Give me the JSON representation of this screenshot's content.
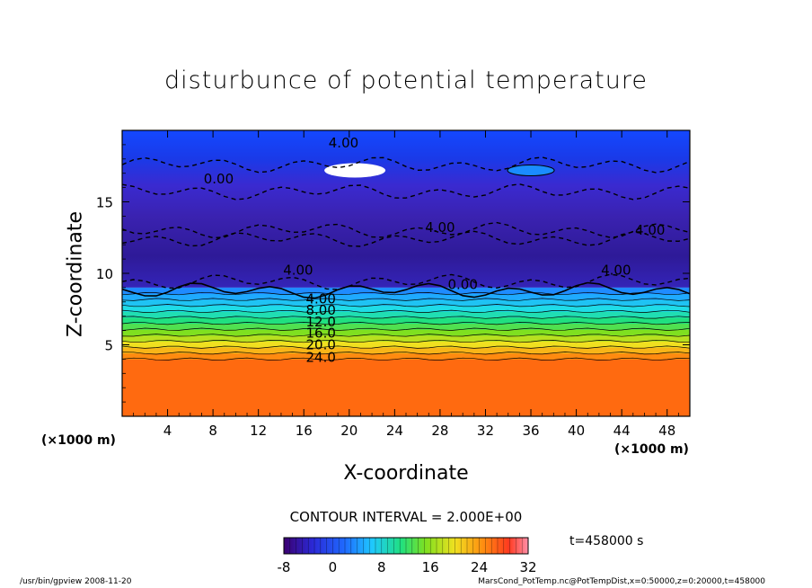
{
  "chart_data": {
    "type": "heatmap",
    "title": "disturbunce of potential temperature",
    "xlabel": "X-coordinate",
    "ylabel": "Z-coordinate",
    "x_unit_left": "(×1000 m)",
    "x_unit_right": "(×1000 m)",
    "xlim": [
      0,
      50
    ],
    "ylim": [
      0,
      20
    ],
    "xticks": [
      4,
      8,
      12,
      16,
      20,
      24,
      28,
      32,
      36,
      40,
      44,
      48
    ],
    "yticks": [
      5,
      10,
      15
    ],
    "contour_interval_label": "CONTOUR INTERVAL = 2.000E+00",
    "time_label": "t=458000 s",
    "colorbar": {
      "min": -8,
      "max": 32,
      "ticks": [
        -8,
        0,
        8,
        16,
        24,
        32
      ]
    },
    "layers": [
      {
        "z_from": 0,
        "z_to": 4,
        "value": 26
      },
      {
        "z_from": 4,
        "z_to": 9,
        "values_descending": [
          24,
          22,
          20,
          18,
          16,
          14,
          12,
          10,
          8,
          6,
          4,
          2
        ]
      },
      {
        "z_from": 9,
        "z_to": 20,
        "value_range": [
          -8,
          4
        ]
      }
    ],
    "contour_labels": [
      {
        "text": "4.00",
        "x": 19.5,
        "z": 18.8
      },
      {
        "text": "0.00",
        "x": 8.5,
        "z": 16.3
      },
      {
        "text": "4.00",
        "x": 28,
        "z": 12.9
      },
      {
        "text": "4.00",
        "x": 46.5,
        "z": 12.7
      },
      {
        "text": "4.00",
        "x": 15.5,
        "z": 9.9
      },
      {
        "text": "0.00",
        "x": 30,
        "z": 8.9
      },
      {
        "text": "4.00",
        "x": 43.5,
        "z": 9.9
      },
      {
        "text": "4.00",
        "x": 17.5,
        "z": 7.9
      },
      {
        "text": "8.00",
        "x": 17.5,
        "z": 7.1
      },
      {
        "text": "12.0",
        "x": 17.5,
        "z": 6.3
      },
      {
        "text": "16.0",
        "x": 17.5,
        "z": 5.5
      },
      {
        "text": "20.0",
        "x": 17.5,
        "z": 4.7
      },
      {
        "text": "24.0",
        "x": 17.5,
        "z": 3.8
      }
    ]
  },
  "footer": {
    "left": "/usr/bin/gpview   2008-11-20",
    "right": "MarsCond_PotTemp.nc@PotTempDist,x=0:50000,z=0:20000,t=458000"
  }
}
